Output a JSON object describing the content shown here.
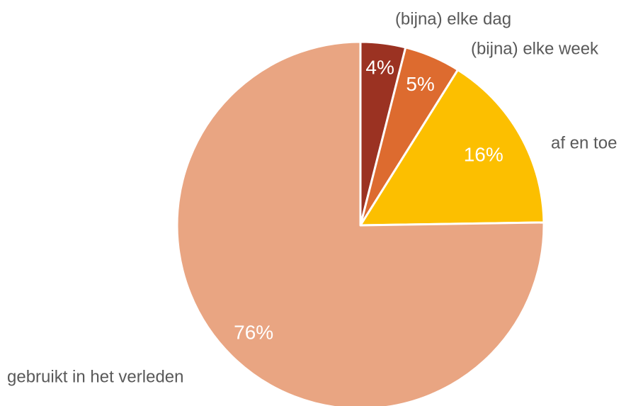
{
  "chart_data": {
    "type": "pie",
    "categories": [
      "(bijna) elke dag",
      "(bijna) elke week",
      "af en toe",
      "gebruikt in het verleden"
    ],
    "values": [
      4,
      5,
      16,
      76
    ],
    "value_labels": [
      "4%",
      "5%",
      "16%",
      "76%"
    ],
    "colors": [
      "#9b3222",
      "#dd6b2f",
      "#fcbf00",
      "#e9a582"
    ]
  }
}
